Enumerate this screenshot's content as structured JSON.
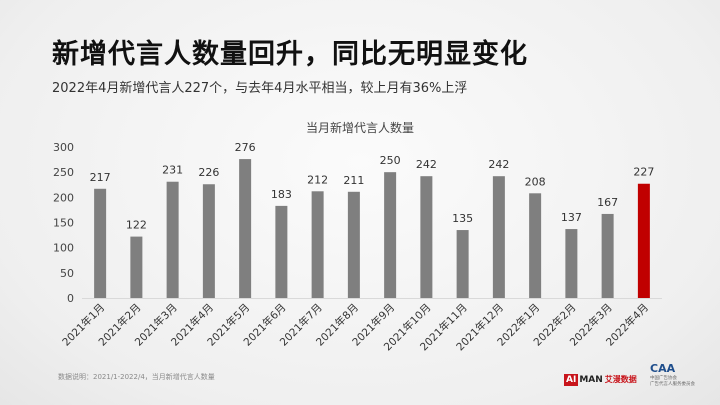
{
  "headline": "新增代言人数量回升，同比无明显变化",
  "subheadline": "2022年4月新增代言人227个，与去年4月水平相当，较上月有36%上浮",
  "footnote": "数据说明：2021/1-2022/4，当月新增代言人数量",
  "logos": {
    "aiman_ai": "AI",
    "aiman_man": "MAN",
    "aiman_cn": "艾漫数据",
    "caa_mark": "CAA",
    "caa_line1": "中国广告协会",
    "caa_line2": "广告代言人服务委员会"
  },
  "colors": {
    "bar": "#7f7f7f",
    "highlight": "#c00000",
    "grid": "#d9d9d9"
  },
  "chart_data": {
    "type": "bar",
    "title": "当月新增代言人数量",
    "xlabel": "",
    "ylabel": "",
    "categories": [
      "2021年1月",
      "2021年2月",
      "2021年3月",
      "2021年4月",
      "2021年5月",
      "2021年6月",
      "2021年7月",
      "2021年8月",
      "2021年9月",
      "2021年10月",
      "2021年11月",
      "2021年12月",
      "2022年1月",
      "2022年2月",
      "2022年3月",
      "2022年4月"
    ],
    "values": [
      217,
      122,
      231,
      226,
      276,
      183,
      212,
      211,
      250,
      242,
      135,
      242,
      208,
      137,
      167,
      227
    ],
    "ylim": [
      0,
      300
    ],
    "yticks": [
      0,
      50,
      100,
      150,
      200,
      250,
      300
    ],
    "highlight_index": 15,
    "grid": false,
    "data_labels": true
  }
}
